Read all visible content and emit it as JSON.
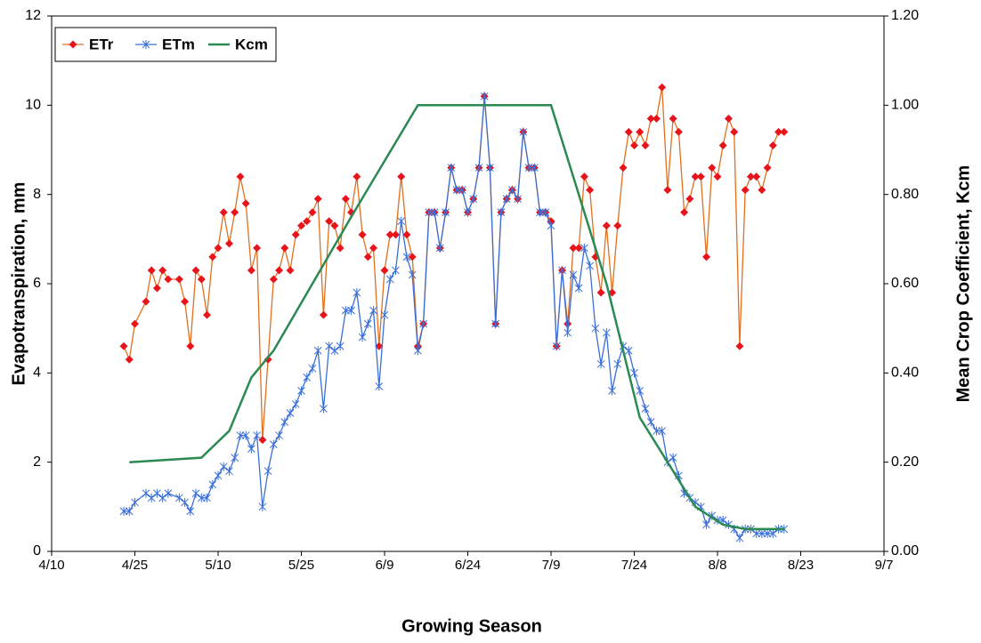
{
  "chart_data": {
    "type": "line",
    "x_label": "Growing Season",
    "y_label": "Evapotranspiration, mm",
    "y2_label": "Mean Crop Coefficient, Kcm",
    "xlim": [
      "4/10",
      "9/7"
    ],
    "xticks": [
      "4/10",
      "4/25",
      "5/10",
      "5/25",
      "6/9",
      "6/24",
      "7/9",
      "7/24",
      "8/8",
      "8/23",
      "9/7"
    ],
    "ylim": [
      0,
      12
    ],
    "yticks": [
      0,
      2,
      4,
      6,
      8,
      10,
      12
    ],
    "y2lim": [
      0,
      1.2
    ],
    "y2ticks": [
      {
        "value": 0,
        "label": "0.00"
      },
      {
        "value": 0.2,
        "label": "0.20"
      },
      {
        "value": 0.4,
        "label": "0.40"
      },
      {
        "value": 0.6,
        "label": "0.60"
      },
      {
        "value": 0.8,
        "label": "0.80"
      },
      {
        "value": 1.0,
        "label": "1.00"
      },
      {
        "value": 1.2,
        "label": "1.20"
      }
    ],
    "legend": "upper left",
    "x": [
      "4/23",
      "4/24",
      "4/25",
      "4/27",
      "4/28",
      "4/29",
      "4/30",
      "5/1",
      "5/3",
      "5/4",
      "5/5",
      "5/6",
      "5/7",
      "5/8",
      "5/9",
      "5/10",
      "5/11",
      "5/12",
      "5/13",
      "5/14",
      "5/15",
      "5/16",
      "5/17",
      "5/18",
      "5/19",
      "5/20",
      "5/21",
      "5/22",
      "5/23",
      "5/24",
      "5/25",
      "5/26",
      "5/27",
      "5/28",
      "5/29",
      "5/30",
      "5/31",
      "6/1",
      "6/2",
      "6/3",
      "6/4",
      "6/5",
      "6/6",
      "6/7",
      "6/8",
      "6/9",
      "6/10",
      "6/11",
      "6/12",
      "6/13",
      "6/14",
      "6/15",
      "6/16",
      "6/17",
      "6/18",
      "6/19",
      "6/20",
      "6/21",
      "6/22",
      "6/23",
      "6/24",
      "6/25",
      "6/26",
      "6/27",
      "6/28",
      "6/29",
      "6/30",
      "7/1",
      "7/2",
      "7/3",
      "7/4",
      "7/5",
      "7/6",
      "7/7",
      "7/8",
      "7/9",
      "7/10",
      "7/11",
      "7/12",
      "7/13",
      "7/14",
      "7/15",
      "7/16",
      "7/17",
      "7/18",
      "7/19",
      "7/20",
      "7/21",
      "7/22",
      "7/23",
      "7/24",
      "7/25",
      "7/26",
      "7/27",
      "7/28",
      "7/29",
      "7/30",
      "7/31",
      "8/1",
      "8/2",
      "8/3",
      "8/4",
      "8/5",
      "8/6",
      "8/7",
      "8/8",
      "8/9",
      "8/10",
      "8/11",
      "8/12",
      "8/13",
      "8/14",
      "8/15",
      "8/16",
      "8/17",
      "8/18",
      "8/19",
      "8/20"
    ],
    "series": [
      {
        "name": "ETr",
        "color": "#e07020",
        "marker_color": "#e8141c",
        "marker": "diamond",
        "values": [
          4.6,
          4.3,
          5.1,
          5.6,
          6.3,
          5.9,
          6.3,
          6.1,
          6.1,
          5.6,
          4.6,
          6.3,
          6.1,
          5.3,
          6.6,
          6.8,
          7.6,
          6.9,
          7.6,
          8.4,
          7.8,
          6.3,
          6.8,
          2.5,
          4.3,
          6.1,
          6.3,
          6.8,
          6.3,
          7.1,
          7.3,
          7.4,
          7.6,
          7.9,
          5.3,
          7.4,
          7.3,
          6.8,
          7.9,
          7.6,
          8.4,
          7.1,
          6.6,
          6.8,
          4.6,
          6.3,
          7.1,
          7.1,
          8.4,
          7.1,
          6.6,
          4.6,
          5.1,
          7.6,
          7.6,
          6.8,
          7.6,
          8.6,
          8.1,
          8.1,
          7.6,
          7.9,
          8.6,
          10.2,
          8.6,
          5.1,
          7.6,
          7.9,
          8.1,
          7.9,
          9.4,
          8.6,
          8.6,
          7.6,
          7.6,
          7.4,
          4.6,
          6.3,
          5.1,
          6.8,
          6.8,
          8.4,
          8.1,
          6.6,
          5.8,
          7.3,
          5.8,
          7.3,
          8.6,
          9.4,
          9.1,
          9.4,
          9.1,
          9.7,
          9.7,
          10.4,
          8.1,
          9.7,
          9.4,
          7.6,
          7.9,
          8.4,
          8.4,
          6.6,
          8.6,
          8.4,
          9.1,
          9.7,
          9.4,
          4.6,
          8.1,
          8.4,
          8.4,
          8.1,
          8.6,
          9.1,
          9.4,
          9.4
        ]
      },
      {
        "name": "ETm",
        "color": "#3a6fd8",
        "marker_color": "#3a6fd8",
        "marker": "star",
        "values": [
          0.9,
          0.9,
          1.1,
          1.3,
          1.2,
          1.3,
          1.2,
          1.3,
          1.2,
          1.1,
          0.9,
          1.3,
          1.2,
          1.2,
          1.5,
          1.7,
          1.9,
          1.8,
          2.1,
          2.6,
          2.6,
          2.3,
          2.6,
          1.0,
          1.8,
          2.4,
          2.6,
          2.9,
          3.1,
          3.3,
          3.6,
          3.9,
          4.1,
          4.5,
          3.2,
          4.6,
          4.5,
          4.6,
          5.4,
          5.4,
          5.8,
          4.8,
          5.1,
          5.4,
          3.7,
          5.3,
          6.1,
          6.3,
          7.4,
          6.6,
          6.2,
          4.5,
          5.1,
          7.6,
          7.6,
          6.8,
          7.6,
          8.6,
          8.1,
          8.1,
          7.6,
          7.9,
          8.6,
          10.2,
          8.6,
          5.1,
          7.6,
          7.9,
          8.1,
          7.9,
          9.4,
          8.6,
          8.6,
          7.6,
          7.6,
          7.3,
          4.6,
          6.3,
          4.9,
          6.2,
          5.9,
          6.8,
          6.4,
          5.0,
          4.2,
          4.9,
          3.6,
          4.2,
          4.6,
          4.5,
          4.0,
          3.6,
          3.2,
          2.9,
          2.7,
          2.7,
          2.0,
          2.1,
          1.7,
          1.3,
          1.2,
          1.1,
          1.0,
          0.6,
          0.8,
          0.7,
          0.7,
          0.6,
          0.5,
          0.3,
          0.5,
          0.5,
          0.4,
          0.4,
          0.4,
          0.4,
          0.5,
          0.5
        ]
      },
      {
        "name": "Kcm",
        "color": "#2a8a52",
        "axis": "y2",
        "x": [
          "4/24",
          "5/7",
          "5/12",
          "5/16",
          "5/20",
          "6/3",
          "6/15",
          "7/9",
          "7/19",
          "7/25",
          "8/4",
          "8/9",
          "8/13",
          "8/20"
        ],
        "values": [
          0.2,
          0.21,
          0.27,
          0.39,
          0.45,
          0.75,
          1.0,
          1.0,
          0.6,
          0.3,
          0.1,
          0.06,
          0.05,
          0.05
        ]
      }
    ]
  }
}
